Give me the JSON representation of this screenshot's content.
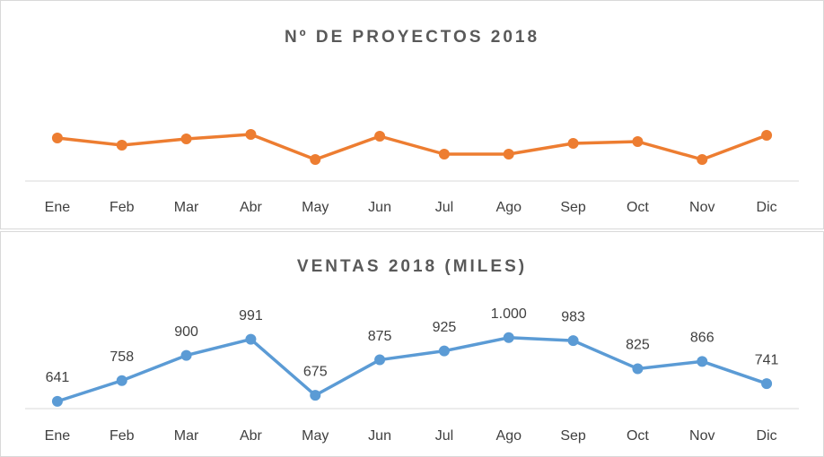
{
  "chart_data": [
    {
      "type": "line",
      "title": "Nº DE PROYECTOS 2018",
      "categories": [
        "Ene",
        "Feb",
        "Mar",
        "Abr",
        "May",
        "Jun",
        "Jul",
        "Ago",
        "Sep",
        "Oct",
        "Nov",
        "Dic"
      ],
      "values": [
        24,
        20,
        23.5,
        26,
        12,
        25,
        15,
        15,
        21,
        22,
        12,
        25.5
      ],
      "color": "#ed7d31",
      "ylim": [
        0,
        65
      ]
    },
    {
      "type": "line",
      "title": "VENTAS 2018 (MILES)",
      "categories": [
        "Ene",
        "Feb",
        "Mar",
        "Abr",
        "May",
        "Jun",
        "Jul",
        "Ago",
        "Sep",
        "Oct",
        "Nov",
        "Dic"
      ],
      "values": [
        641,
        758,
        900,
        991,
        675,
        875,
        925,
        1000,
        983,
        825,
        866,
        741
      ],
      "value_labels": [
        "641",
        "758",
        "900",
        "991",
        "675",
        "875",
        "925",
        "1.000",
        "983",
        "825",
        "866",
        "741"
      ],
      "color": "#5b9bd5",
      "ylim": [
        600,
        1100
      ]
    }
  ]
}
